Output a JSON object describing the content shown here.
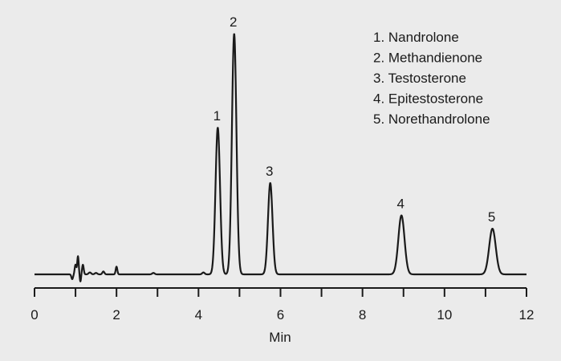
{
  "colors": {
    "background": "#ebebeb",
    "line": "#1a1a1a"
  },
  "chart_data": {
    "type": "line",
    "title": "",
    "xlabel": "Min",
    "ylabel": "",
    "xlim": [
      0,
      12
    ],
    "ylim": [
      0,
      1
    ],
    "grid": false,
    "legend_placement": "top-right",
    "x_ticks": [
      0,
      2,
      4,
      6,
      8,
      10,
      12
    ],
    "x_tick_labels": [
      "0",
      "2",
      "4",
      "6",
      "8",
      "10",
      "12"
    ],
    "x_minor_ticks": [
      1,
      3,
      5,
      7,
      9,
      11
    ],
    "baseline": 0.0,
    "minor_peaks": [
      {
        "x": 0.92,
        "height": -0.02,
        "width": 0.02
      },
      {
        "x": 1.0,
        "height": 0.04,
        "width": 0.02
      },
      {
        "x": 1.06,
        "height": 0.075,
        "width": 0.018
      },
      {
        "x": 1.12,
        "height": -0.03,
        "width": 0.015
      },
      {
        "x": 1.18,
        "height": 0.04,
        "width": 0.02
      },
      {
        "x": 1.35,
        "height": 0.008,
        "width": 0.03
      },
      {
        "x": 1.5,
        "height": 0.006,
        "width": 0.03
      },
      {
        "x": 1.68,
        "height": 0.012,
        "width": 0.025
      },
      {
        "x": 2.0,
        "height": 0.032,
        "width": 0.02
      },
      {
        "x": 2.9,
        "height": 0.006,
        "width": 0.03
      },
      {
        "x": 4.12,
        "height": 0.008,
        "width": 0.03
      }
    ],
    "series": [
      {
        "peaks": [
          {
            "label": "1",
            "x": 4.47,
            "height": 0.61,
            "width": 0.055
          },
          {
            "label": "2",
            "x": 4.87,
            "height": 1.0,
            "width": 0.055
          },
          {
            "label": "3",
            "x": 5.75,
            "height": 0.38,
            "width": 0.055
          },
          {
            "label": "4",
            "x": 8.95,
            "height": 0.245,
            "width": 0.075
          },
          {
            "label": "5",
            "x": 11.17,
            "height": 0.19,
            "width": 0.08
          }
        ]
      }
    ],
    "legend": [
      "1. Nandrolone",
      "2. Methandienone",
      "3. Testosterone",
      "4. Epitestosterone",
      "5. Norethandrolone"
    ]
  }
}
